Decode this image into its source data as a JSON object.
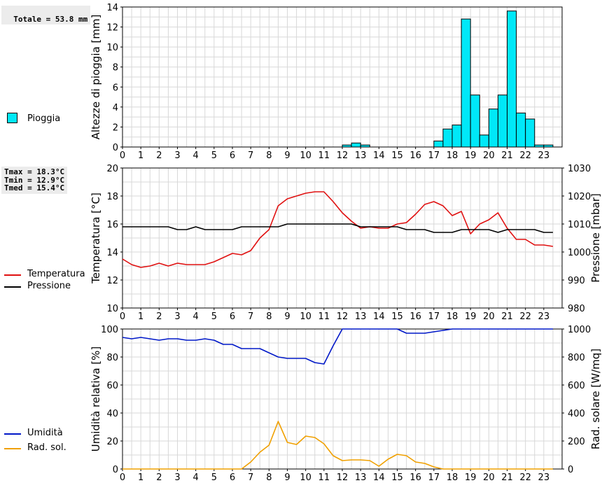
{
  "rain_panel": {
    "total_label": "Totale = 53.8 mm",
    "legend_label": "Pioggia",
    "ylabel": "Altezze di pioggia [mm]",
    "bar_color": "#00e8f8"
  },
  "temp_panel": {
    "stats": [
      "Tmax = 18.3°C",
      "Tmin = 12.9°C",
      "Tmed = 15.4°C"
    ],
    "legend_temp": "Temperatura",
    "legend_press": "Pressione",
    "ylabel_left": "Temperatura [°C]",
    "ylabel_right": "Pressione [mbar]",
    "temp_color": "#e01010",
    "press_color": "#000000"
  },
  "hum_panel": {
    "legend_hum": "Umidità",
    "legend_rad": "Rad. sol.",
    "ylabel_left": "Umidità relativa [%]",
    "ylabel_right": "Rad. solare [W/mq]",
    "hum_color": "#0018c8",
    "rad_color": "#f0a000"
  },
  "chart_data": [
    {
      "type": "bar",
      "ylabel": "Altezze di pioggia [mm]",
      "ylim": [
        0,
        14
      ],
      "yticks": [
        0,
        2,
        4,
        6,
        8,
        10,
        12,
        14
      ],
      "x_ticks": [
        0,
        1,
        2,
        3,
        4,
        5,
        6,
        7,
        8,
        9,
        10,
        11,
        12,
        13,
        14,
        15,
        16,
        17,
        18,
        19,
        20,
        21,
        22,
        23
      ],
      "xlim": [
        0,
        24
      ],
      "bar_width": 0.5,
      "series": [
        {
          "name": "Pioggia",
          "x": [
            12.25,
            12.75,
            13.25,
            17.25,
            17.75,
            18.25,
            18.75,
            19.25,
            19.75,
            20.25,
            20.75,
            21.25,
            21.75,
            22.25,
            22.75,
            23.25
          ],
          "values": [
            0.2,
            0.4,
            0.2,
            0.6,
            1.8,
            2.2,
            12.8,
            5.2,
            1.2,
            3.8,
            5.2,
            13.6,
            3.4,
            2.8,
            0.2,
            0.2
          ]
        }
      ]
    },
    {
      "type": "line",
      "ylabel": "Temperatura [°C]",
      "ylim": [
        10,
        20
      ],
      "yticks": [
        10,
        12,
        14,
        16,
        18,
        20
      ],
      "y2label": "Pressione [mbar]",
      "y2lim": [
        980,
        1030
      ],
      "y2ticks": [
        980,
        990,
        1000,
        1010,
        1020,
        1030
      ],
      "x_ticks": [
        0,
        1,
        2,
        3,
        4,
        5,
        6,
        7,
        8,
        9,
        10,
        11,
        12,
        13,
        14,
        15,
        16,
        17,
        18,
        19,
        20,
        21,
        22,
        23
      ],
      "xlim": [
        0,
        24
      ],
      "grid": true,
      "series": [
        {
          "name": "Temperatura",
          "axis": "left",
          "x": [
            0,
            0.5,
            1,
            1.5,
            2,
            2.5,
            3,
            3.5,
            4,
            4.5,
            5,
            5.5,
            6,
            6.5,
            7,
            7.5,
            8,
            8.5,
            9,
            9.5,
            10,
            10.5,
            11,
            11.5,
            12,
            12.5,
            13,
            13.5,
            14,
            14.5,
            15,
            15.5,
            16,
            16.5,
            17,
            17.5,
            18,
            18.5,
            19,
            19.5,
            20,
            20.5,
            21,
            21.5,
            22,
            22.5,
            23,
            23.5
          ],
          "values": [
            13.5,
            13.1,
            12.9,
            13.0,
            13.2,
            13.0,
            13.2,
            13.1,
            13.1,
            13.1,
            13.3,
            13.6,
            13.9,
            13.8,
            14.1,
            15.0,
            15.6,
            17.3,
            17.8,
            18.0,
            18.2,
            18.3,
            18.3,
            17.6,
            16.8,
            16.2,
            15.7,
            15.8,
            15.7,
            15.7,
            16.0,
            16.1,
            16.7,
            17.4,
            17.6,
            17.3,
            16.6,
            16.9,
            15.3,
            16.0,
            16.3,
            16.8,
            15.7,
            14.9,
            14.9,
            14.5,
            14.5,
            14.4
          ]
        },
        {
          "name": "Pressione",
          "axis": "right",
          "x": [
            0,
            0.5,
            1,
            1.5,
            2,
            2.5,
            3,
            3.5,
            4,
            4.5,
            5,
            5.5,
            6,
            6.5,
            7,
            7.5,
            8,
            8.5,
            9,
            9.5,
            10,
            10.5,
            11,
            11.5,
            12,
            12.5,
            13,
            13.5,
            14,
            14.5,
            15,
            15.5,
            16,
            16.5,
            17,
            17.5,
            18,
            18.5,
            19,
            19.5,
            20,
            20.5,
            21,
            21.5,
            22,
            22.5,
            23,
            23.5
          ],
          "values": [
            1009,
            1009,
            1009,
            1009,
            1009,
            1009,
            1008,
            1008,
            1009,
            1008,
            1008,
            1008,
            1008,
            1009,
            1009,
            1009,
            1009,
            1009,
            1010,
            1010,
            1010,
            1010,
            1010,
            1010,
            1010,
            1010,
            1009,
            1009,
            1009,
            1009,
            1009,
            1008,
            1008,
            1008,
            1007,
            1007,
            1007,
            1008,
            1008,
            1008,
            1008,
            1007,
            1008,
            1008,
            1008,
            1008,
            1007,
            1007
          ]
        }
      ]
    },
    {
      "type": "line",
      "ylabel": "Umidità relativa [%]",
      "ylim": [
        0,
        100
      ],
      "yticks": [
        0,
        20,
        40,
        60,
        80,
        100
      ],
      "y2label": "Rad. solare [W/mq]",
      "y2lim": [
        0,
        1000
      ],
      "y2ticks": [
        0,
        200,
        400,
        600,
        800,
        1000
      ],
      "x_ticks": [
        0,
        1,
        2,
        3,
        4,
        5,
        6,
        7,
        8,
        9,
        10,
        11,
        12,
        13,
        14,
        15,
        16,
        17,
        18,
        19,
        20,
        21,
        22,
        23
      ],
      "xlim": [
        0,
        24
      ],
      "grid": true,
      "series": [
        {
          "name": "Umidità",
          "axis": "left",
          "x": [
            0,
            0.5,
            1,
            1.5,
            2,
            2.5,
            3,
            3.5,
            4,
            4.5,
            5,
            5.5,
            6,
            6.5,
            7,
            7.5,
            8,
            8.5,
            9,
            9.5,
            10,
            10.5,
            11,
            11.5,
            12,
            12.5,
            13,
            13.5,
            14,
            14.5,
            15,
            15.5,
            16,
            16.5,
            17,
            17.5,
            18,
            18.5,
            19,
            19.5,
            20,
            20.5,
            21,
            21.5,
            22,
            22.5,
            23,
            23.5
          ],
          "values": [
            94,
            93,
            94,
            93,
            92,
            93,
            93,
            92,
            92,
            93,
            92,
            89,
            89,
            86,
            86,
            86,
            83,
            80,
            79,
            79,
            79,
            76,
            75,
            88,
            100,
            100,
            100,
            100,
            100,
            100,
            100,
            97,
            97,
            97,
            98,
            99,
            100,
            100,
            100,
            100,
            100,
            100,
            100,
            100,
            100,
            100,
            100,
            100
          ]
        },
        {
          "name": "Rad. sol.",
          "axis": "right",
          "x": [
            0,
            0.5,
            1,
            1.5,
            2,
            2.5,
            3,
            3.5,
            4,
            4.5,
            5,
            5.5,
            6,
            6.5,
            7,
            7.5,
            8,
            8.5,
            9,
            9.5,
            10,
            10.5,
            11,
            11.5,
            12,
            12.5,
            13,
            13.5,
            14,
            14.5,
            15,
            15.5,
            16,
            16.5,
            17,
            17.5,
            18,
            18.5,
            19,
            19.5,
            20,
            20.5,
            21,
            21.5,
            22,
            22.5,
            23,
            23.5
          ],
          "values": [
            0,
            0,
            0,
            0,
            0,
            0,
            0,
            0,
            0,
            0,
            0,
            0,
            0,
            0,
            50,
            120,
            170,
            340,
            190,
            175,
            235,
            225,
            180,
            95,
            60,
            65,
            65,
            60,
            20,
            70,
            105,
            95,
            50,
            40,
            15,
            0,
            0,
            0,
            0,
            0,
            0,
            0,
            0,
            0,
            0,
            0,
            0,
            0
          ]
        }
      ]
    }
  ]
}
